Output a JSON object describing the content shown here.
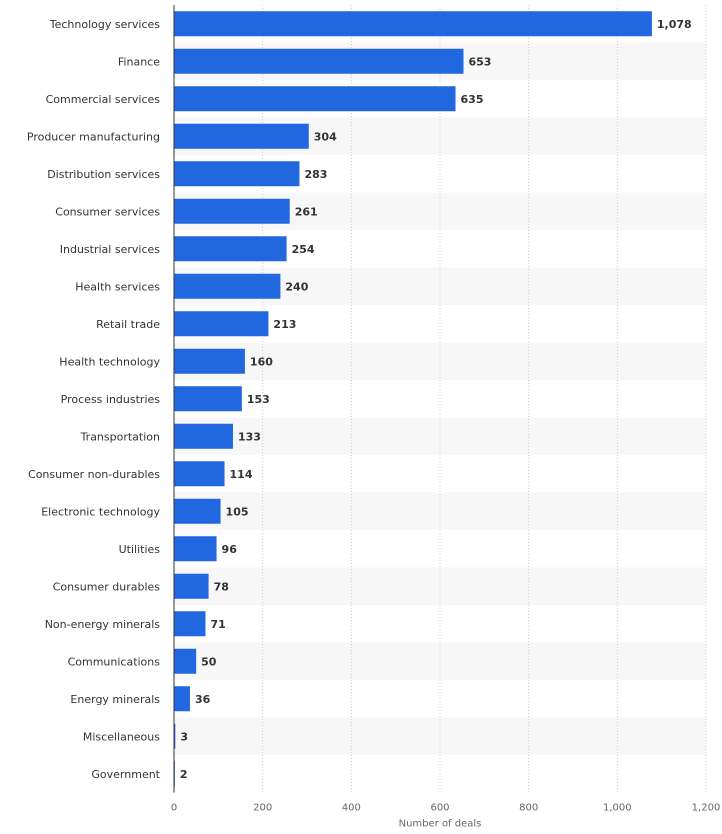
{
  "chart_data": {
    "type": "bar",
    "orientation": "horizontal",
    "title": "",
    "xlabel": "Number of deals",
    "ylabel": "",
    "xlim": [
      0,
      1200
    ],
    "xticks": [
      0,
      200,
      400,
      600,
      800,
      1000,
      1200
    ],
    "xtick_labels": [
      "0",
      "200",
      "400",
      "600",
      "800",
      "1,000",
      "1,200"
    ],
    "grid": true,
    "categories": [
      "Technology services",
      "Finance",
      "Commercial services",
      "Producer manufacturing",
      "Distribution services",
      "Consumer services",
      "Industrial services",
      "Health services",
      "Retail trade",
      "Health technology",
      "Process industries",
      "Transportation",
      "Consumer non-durables",
      "Electronic technology",
      "Utilities",
      "Consumer durables",
      "Non-energy minerals",
      "Communications",
      "Energy minerals",
      "Miscellaneous",
      "Government"
    ],
    "values": [
      1078,
      653,
      635,
      304,
      283,
      261,
      254,
      240,
      213,
      160,
      153,
      133,
      114,
      105,
      96,
      78,
      71,
      50,
      36,
      3,
      2
    ],
    "value_labels": [
      "1,078",
      "653",
      "635",
      "304",
      "283",
      "261",
      "254",
      "240",
      "213",
      "160",
      "153",
      "133",
      "114",
      "105",
      "96",
      "78",
      "71",
      "50",
      "36",
      "3",
      "2"
    ],
    "bar_color": "#2167e0",
    "stripe_color": "#f7f7f7"
  }
}
